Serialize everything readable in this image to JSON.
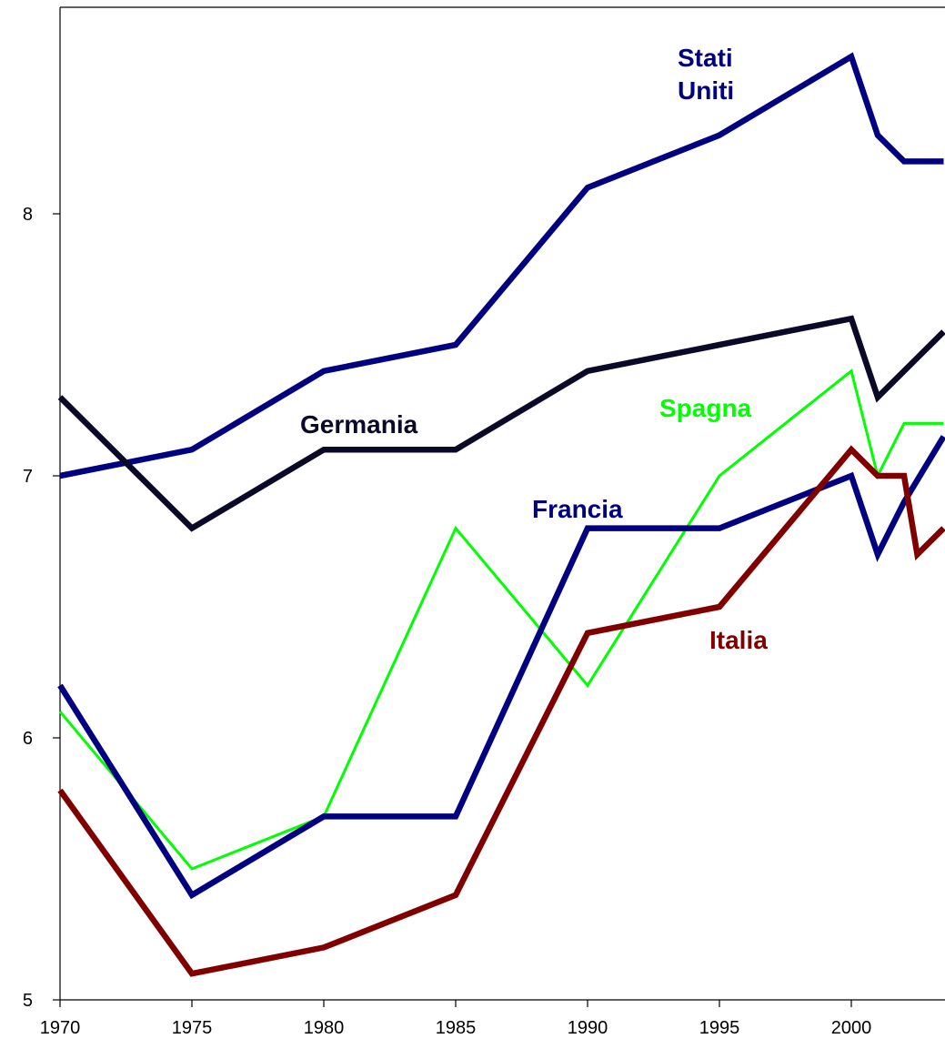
{
  "chart_data": {
    "type": "line",
    "title": "",
    "xlabel": "",
    "ylabel": "",
    "xlim": [
      1970,
      2003.5
    ],
    "ylim": [
      5,
      8.8
    ],
    "x_ticks": [
      1970,
      1975,
      1980,
      1985,
      1990,
      1995,
      2000
    ],
    "y_ticks": [
      5,
      6,
      7,
      8
    ],
    "grid": false,
    "legend": "none (series labels placed inside plot)",
    "series": [
      {
        "name": "Stati Uniti",
        "label_lines": [
          "Stati",
          "Uniti"
        ],
        "color": "#000080",
        "width": "thick",
        "x": [
          1970,
          1975,
          1980,
          1985,
          1990,
          1995,
          2000,
          2001,
          2002,
          2003.5
        ],
        "y": [
          7.0,
          7.1,
          7.4,
          7.5,
          8.1,
          8.3,
          8.6,
          8.3,
          8.2,
          8.2
        ]
      },
      {
        "name": "Germania",
        "label_lines": [
          "Germania"
        ],
        "color": "#0a0a28",
        "width": "thick",
        "x": [
          1970,
          1975,
          1980,
          1985,
          1990,
          1995,
          2000,
          2001,
          2003.5
        ],
        "y": [
          7.3,
          6.8,
          7.1,
          7.1,
          7.4,
          7.5,
          7.6,
          7.3,
          7.55
        ]
      },
      {
        "name": "Spagna",
        "label_lines": [
          "Spagna"
        ],
        "color": "#00ff00",
        "width": "thin",
        "x": [
          1970,
          1975,
          1980,
          1985,
          1990,
          1995,
          2000,
          2001,
          2002,
          2003.5
        ],
        "y": [
          6.1,
          5.5,
          5.7,
          6.8,
          6.2,
          7.0,
          7.4,
          7.0,
          7.2,
          7.2
        ]
      },
      {
        "name": "Francia",
        "label_lines": [
          "Francia"
        ],
        "color": "#000080",
        "width": "thick",
        "x": [
          1970,
          1975,
          1980,
          1985,
          1990,
          1995,
          2000,
          2001,
          2002,
          2003.5
        ],
        "y": [
          6.2,
          5.4,
          5.7,
          5.7,
          6.8,
          6.8,
          7.0,
          6.7,
          6.9,
          7.15
        ]
      },
      {
        "name": "Italia",
        "label_lines": [
          "Italia"
        ],
        "color": "#800000",
        "width": "thick",
        "x": [
          1970,
          1975,
          1980,
          1985,
          1990,
          1995,
          2000,
          2001,
          2002,
          2002.5,
          2003.5
        ],
        "y": [
          5.8,
          5.1,
          5.2,
          5.4,
          6.4,
          6.5,
          7.1,
          7.0,
          7.0,
          6.7,
          6.8
        ]
      }
    ]
  }
}
